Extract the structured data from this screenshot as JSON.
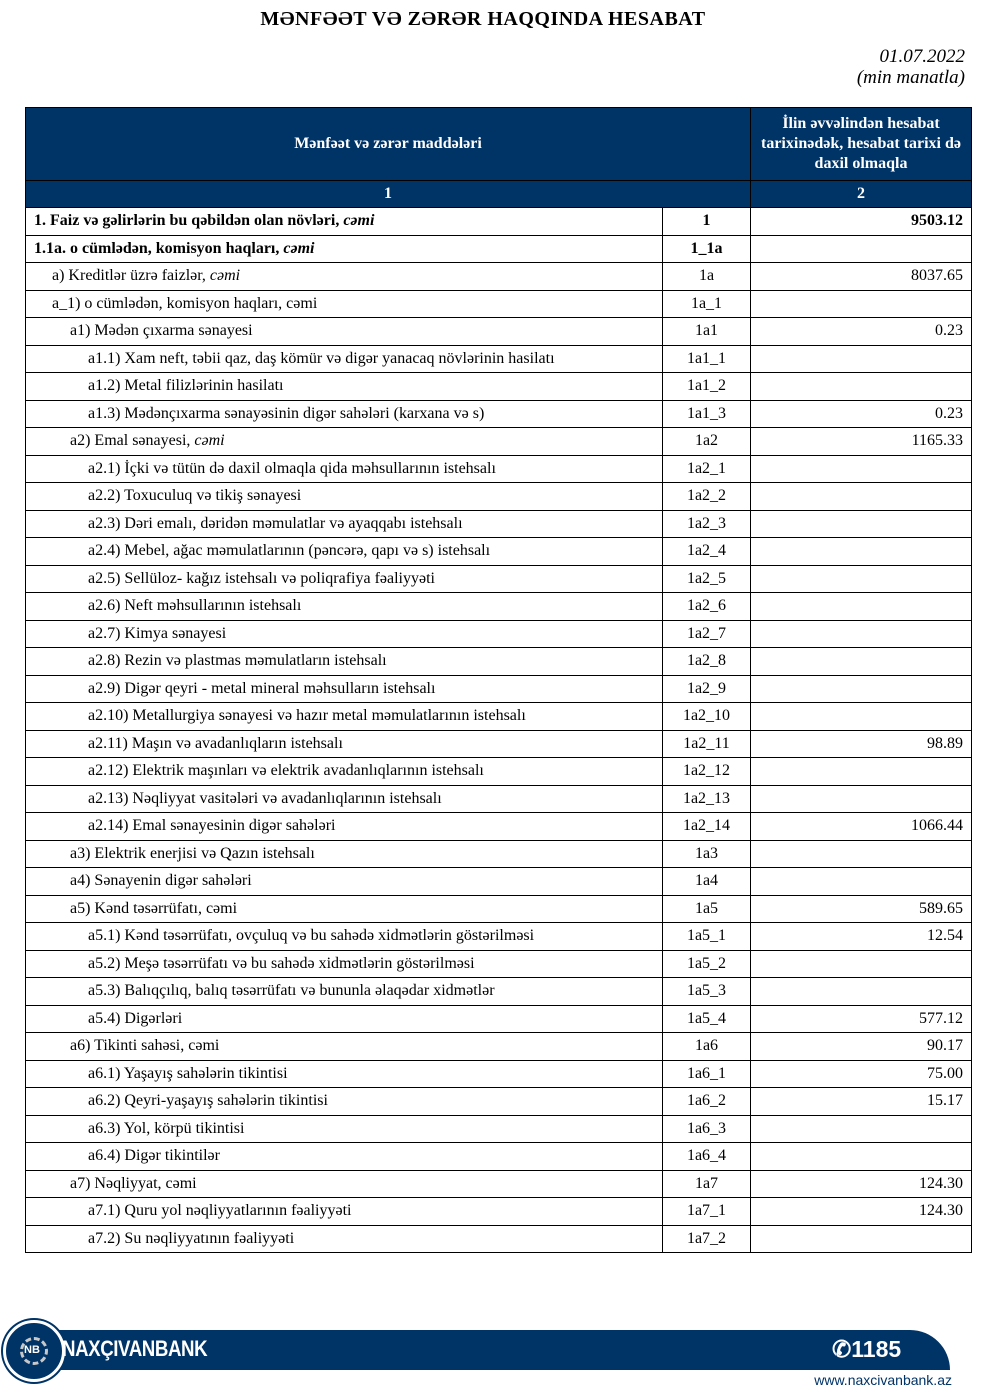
{
  "title": "MƏNFƏƏT VƏ ZƏRƏR HAQQINDA HESABAT",
  "date": "01.07.2022",
  "unit": "(min manatla)",
  "table": {
    "headers": {
      "items": "Mənfəət və zərər maddələri",
      "period": "İlin əvvəlindən hesabat tarixinədək, hesabat tarixi də daxil olmaqla",
      "col1": "1",
      "col2": "2"
    },
    "rows": [
      {
        "label": "1. Faiz və gəlirlərin bu qəbildən olan növləri, ",
        "em": "cəmi",
        "code": "1",
        "value": "9503.12",
        "level": 0,
        "bold": true
      },
      {
        "label": "1.1a. o cümlədən, komisyon haqları, ",
        "em": "cəmi",
        "code": "1_1a",
        "value": "",
        "level": 0,
        "bold": true
      },
      {
        "label": "a) Kreditlər üzrə faizlər, ",
        "em": "cəmi",
        "code": "1a",
        "value": "8037.65",
        "level": 1
      },
      {
        "label": "a_1) o cümlədən, komisyon haqları, cəmi",
        "code": "1a_1",
        "value": "",
        "level": 1
      },
      {
        "label": "a1) Mədən çıxarma sənayesi",
        "code": "1a1",
        "value": "0.23",
        "level": 2
      },
      {
        "label": "a1.1) Xam neft, təbii qaz, daş kömür və digər yanacaq növlərinin hasilatı",
        "code": "1a1_1",
        "value": "",
        "level": 3
      },
      {
        "label": "a1.2) Metal filizlərinin hasilatı",
        "code": "1a1_2",
        "value": "",
        "level": 3
      },
      {
        "label": "a1.3) Mədənçıxarma sənayəsinin digər sahələri (karxana və s)",
        "code": "1a1_3",
        "value": "0.23",
        "level": 3
      },
      {
        "label": "a2) Emal sənayesi, ",
        "em": "cəmi",
        "code": "1a2",
        "value": "1165.33",
        "level": 2
      },
      {
        "label": "a2.1) İçki və tütün də daxil olmaqla qida məhsullarının istehsalı",
        "code": "1a2_1",
        "value": "",
        "level": 3
      },
      {
        "label": "a2.2) Toxuculuq və tikiş sənayesi",
        "code": "1a2_2",
        "value": "",
        "level": 3
      },
      {
        "label": "a2.3) Dəri emalı, dəridən məmulatlar və ayaqqabı istehsalı",
        "code": "1a2_3",
        "value": "",
        "level": 3
      },
      {
        "label": "a2.4) Mebel, ağac məmulatlarının (pəncərə, qapı və s) istehsalı",
        "code": "1a2_4",
        "value": "",
        "level": 3
      },
      {
        "label": "a2.5) Sellüloz- kağız istehsalı və poliqrafiya fəaliyyəti",
        "code": "1a2_5",
        "value": "",
        "level": 3
      },
      {
        "label": "a2.6) Neft məhsullarının istehsalı",
        "code": "1a2_6",
        "value": "",
        "level": 3
      },
      {
        "label": "a2.7) Kimya sənayesi",
        "code": "1a2_7",
        "value": "",
        "level": 3
      },
      {
        "label": "a2.8) Rezin və plastmas məmulatların istehsalı",
        "code": "1a2_8",
        "value": "",
        "level": 3
      },
      {
        "label": "a2.9) Digər qeyri - metal mineral məhsulların istehsalı",
        "code": "1a2_9",
        "value": "",
        "level": 3
      },
      {
        "label": "a2.10) Metallurgiya sənayesi və hazır metal məmulatlarının istehsalı",
        "code": "1a2_10",
        "value": "",
        "level": 3
      },
      {
        "label": "a2.11) Maşın və avadanlıqların istehsalı",
        "code": "1a2_11",
        "value": "98.89",
        "level": 3
      },
      {
        "label": "a2.12) Elektrik maşınları və elektrik avadanlıqlarının istehsalı",
        "code": "1a2_12",
        "value": "",
        "level": 3
      },
      {
        "label": "a2.13) Nəqliyyat vasitələri və avadanlıqlarının istehsalı",
        "code": "1a2_13",
        "value": "",
        "level": 3
      },
      {
        "label": "a2.14) Emal sənayesinin digər sahələri",
        "code": "1a2_14",
        "value": "1066.44",
        "level": 3
      },
      {
        "label": "a3) Elektrik enerjisi və Qazın istehsalı",
        "code": "1a3",
        "value": "",
        "level": 2
      },
      {
        "label": "a4) Sənayenin digər sahələri",
        "code": "1a4",
        "value": "",
        "level": 2
      },
      {
        "label": "a5) Kənd təsərrüfatı, cəmi",
        "code": "1a5",
        "value": "589.65",
        "level": 2
      },
      {
        "label": "a5.1) Kənd təsərrüfatı, ovçuluq və bu sahədə xidmətlərin göstərilməsi",
        "code": "1a5_1",
        "value": "12.54",
        "level": 3
      },
      {
        "label": "a5.2) Meşə təsərrüfatı və bu sahədə xidmətlərin göstərilməsi",
        "code": "1a5_2",
        "value": "",
        "level": 3
      },
      {
        "label": "a5.3) Balıqçılıq, balıq təsərrüfatı və bununla əlaqədar xidmətlər",
        "code": "1a5_3",
        "value": "",
        "level": 3
      },
      {
        "label": "a5.4) Digərləri",
        "code": "1a5_4",
        "value": "577.12",
        "level": 3
      },
      {
        "label": "a6) Tikinti sahəsi, cəmi",
        "code": "1a6",
        "value": "90.17",
        "level": 2
      },
      {
        "label": "a6.1) Yaşayış sahələrin tikintisi",
        "code": "1a6_1",
        "value": "75.00",
        "level": 3
      },
      {
        "label": "a6.2) Qeyri-yaşayış sahələrin tikintisi",
        "code": "1a6_2",
        "value": "15.17",
        "level": 3
      },
      {
        "label": "a6.3) Yol, körpü tikintisi",
        "code": "1a6_3",
        "value": "",
        "level": 3
      },
      {
        "label": "a6.4) Digər tikintilər",
        "code": "1a6_4",
        "value": "",
        "level": 3
      },
      {
        "label": "a7) Nəqliyyat, cəmi",
        "code": "1a7",
        "value": "124.30",
        "level": 2
      },
      {
        "label": "a7.1) Quru yol nəqliyyatlarının fəaliyyəti",
        "code": "1a7_1",
        "value": "124.30",
        "level": 3
      },
      {
        "label": "a7.2) Su nəqliyyatının fəaliyyəti",
        "code": "1a7_2",
        "value": "",
        "level": 3
      }
    ]
  },
  "footer": {
    "logo_text": "NB",
    "brand": "NAXÇIVANBANK",
    "phone": "1185",
    "phone_icon": "phone-icon",
    "url": "www.naxcivanbank.az",
    "color": "#003366"
  }
}
